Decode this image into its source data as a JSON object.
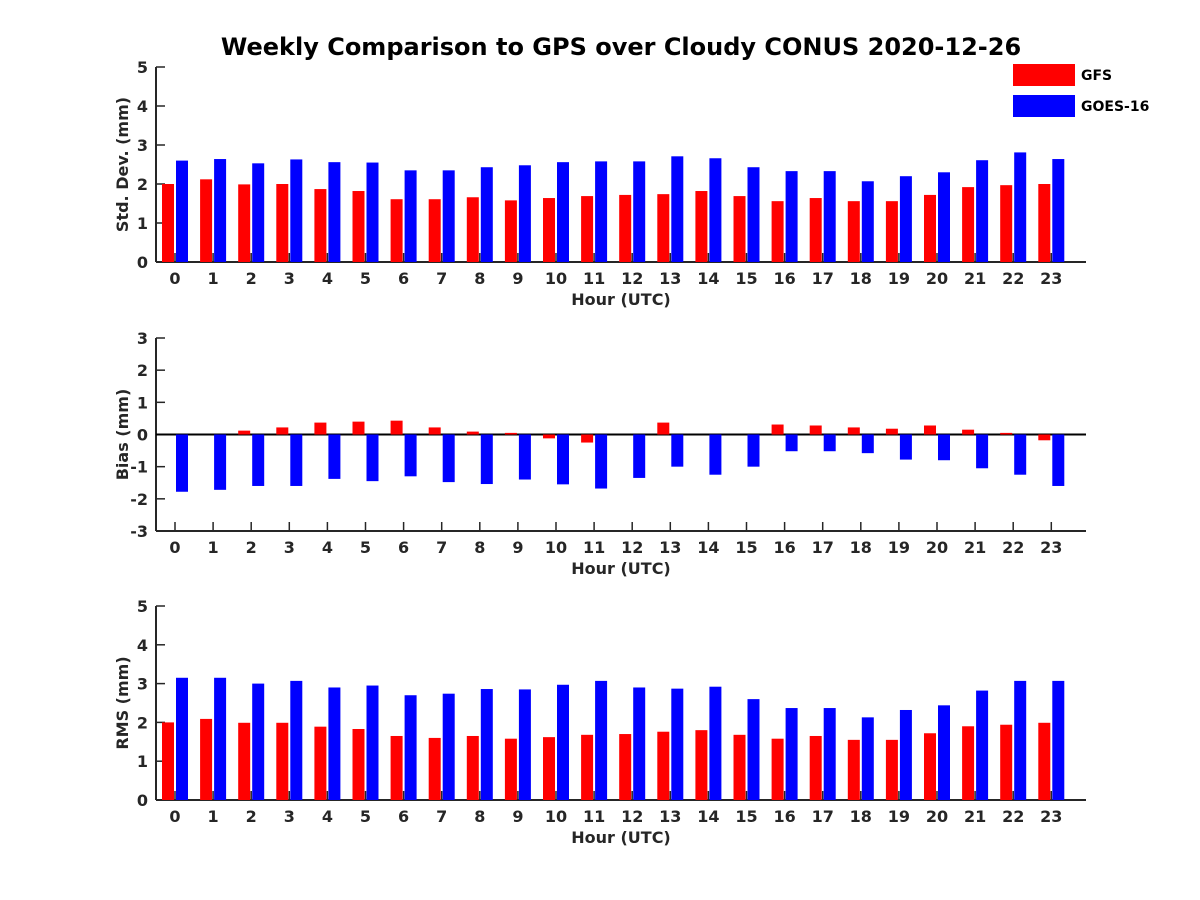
{
  "title": "Weekly Comparison to GPS over Cloudy CONUS 2020-12-26",
  "colors": {
    "GFS": "#ff0000",
    "GOES-16": "#0000ff"
  },
  "legend": [
    {
      "name": "GFS",
      "color": "#ff0000"
    },
    {
      "name": "GOES-16",
      "color": "#0000ff"
    }
  ],
  "chart_data": [
    {
      "type": "bar",
      "ylabel": "Std. Dev. (mm)",
      "xlabel": "Hour (UTC)",
      "ylim": [
        0,
        5
      ],
      "yticks": [
        0,
        1,
        2,
        3,
        4,
        5
      ],
      "categories": [
        "0",
        "1",
        "2",
        "3",
        "4",
        "5",
        "6",
        "7",
        "8",
        "9",
        "10",
        "11",
        "12",
        "13",
        "14",
        "15",
        "16",
        "17",
        "18",
        "19",
        "20",
        "21",
        "22",
        "23"
      ],
      "series": [
        {
          "name": "GFS",
          "values": [
            2.0,
            2.12,
            1.99,
            2.0,
            1.87,
            1.82,
            1.61,
            1.61,
            1.66,
            1.58,
            1.64,
            1.69,
            1.72,
            1.74,
            1.82,
            1.69,
            1.56,
            1.64,
            1.56,
            1.56,
            1.72,
            1.92,
            1.97,
            2.0
          ]
        },
        {
          "name": "GOES-16",
          "values": [
            2.6,
            2.64,
            2.53,
            2.63,
            2.56,
            2.55,
            2.35,
            2.35,
            2.43,
            2.48,
            2.56,
            2.58,
            2.58,
            2.71,
            2.66,
            2.43,
            2.33,
            2.33,
            2.07,
            2.2,
            2.3,
            2.61,
            2.81,
            2.64
          ]
        }
      ]
    },
    {
      "type": "bar",
      "ylabel": "Bias (mm)",
      "xlabel": "Hour (UTC)",
      "ylim": [
        -3,
        3
      ],
      "yticks": [
        -3,
        -2,
        -1,
        0,
        1,
        2,
        3
      ],
      "zero_line": true,
      "categories": [
        "0",
        "1",
        "2",
        "3",
        "4",
        "5",
        "6",
        "7",
        "8",
        "9",
        "10",
        "11",
        "12",
        "13",
        "14",
        "15",
        "16",
        "17",
        "18",
        "19",
        "20",
        "21",
        "22",
        "23"
      ],
      "series": [
        {
          "name": "GFS",
          "values": [
            0.0,
            0.0,
            0.12,
            0.22,
            0.37,
            0.4,
            0.43,
            0.22,
            0.09,
            0.05,
            -0.12,
            -0.25,
            0.0,
            0.37,
            0.0,
            0.0,
            0.31,
            0.28,
            0.22,
            0.18,
            0.28,
            0.15,
            0.05,
            -0.18
          ]
        },
        {
          "name": "GOES-16",
          "values": [
            -1.78,
            -1.72,
            -1.6,
            -1.6,
            -1.38,
            -1.45,
            -1.3,
            -1.48,
            -1.54,
            -1.4,
            -1.55,
            -1.68,
            -1.35,
            -1.0,
            -1.25,
            -1.0,
            -0.52,
            -0.52,
            -0.58,
            -0.78,
            -0.8,
            -1.05,
            -1.25,
            -1.6
          ]
        }
      ]
    },
    {
      "type": "bar",
      "ylabel": "RMS (mm)",
      "xlabel": "Hour (UTC)",
      "ylim": [
        0,
        5
      ],
      "yticks": [
        0,
        1,
        2,
        3,
        4,
        5
      ],
      "categories": [
        "0",
        "1",
        "2",
        "3",
        "4",
        "5",
        "6",
        "7",
        "8",
        "9",
        "10",
        "11",
        "12",
        "13",
        "14",
        "15",
        "16",
        "17",
        "18",
        "19",
        "20",
        "21",
        "22",
        "23"
      ],
      "series": [
        {
          "name": "GFS",
          "values": [
            2.0,
            2.09,
            1.99,
            1.99,
            1.89,
            1.83,
            1.65,
            1.6,
            1.65,
            1.58,
            1.62,
            1.68,
            1.7,
            1.76,
            1.8,
            1.68,
            1.58,
            1.65,
            1.55,
            1.55,
            1.72,
            1.9,
            1.94,
            1.99
          ]
        },
        {
          "name": "GOES-16",
          "values": [
            3.15,
            3.15,
            3.0,
            3.07,
            2.9,
            2.95,
            2.7,
            2.74,
            2.86,
            2.85,
            2.97,
            3.07,
            2.9,
            2.87,
            2.92,
            2.6,
            2.37,
            2.37,
            2.13,
            2.32,
            2.44,
            2.82,
            3.07,
            3.07
          ]
        }
      ]
    }
  ]
}
